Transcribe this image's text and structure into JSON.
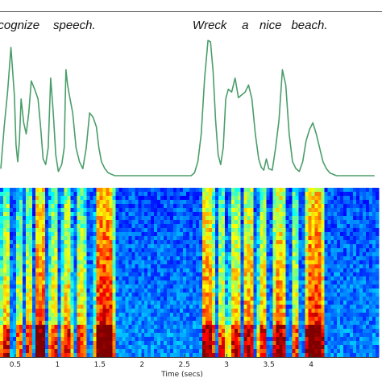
{
  "chart_data": [
    {
      "type": "line",
      "title": "",
      "annotations": [
        {
          "text": "Recognize",
          "x": 0.45
        },
        {
          "text": "speech.",
          "x": 1.2
        },
        {
          "text": "Wreck",
          "x": 2.8
        },
        {
          "text": "a",
          "x": 3.22
        },
        {
          "text": "nice",
          "x": 3.52
        },
        {
          "text": "beach.",
          "x": 3.98
        }
      ],
      "xlim": [
        0.32,
        4.8
      ],
      "ylim": [
        0,
        1
      ],
      "x": [
        0.33,
        0.37,
        0.41,
        0.45,
        0.49,
        0.51,
        0.53,
        0.55,
        0.57,
        0.6,
        0.63,
        0.66,
        0.69,
        0.73,
        0.77,
        0.8,
        0.83,
        0.86,
        0.89,
        0.92,
        0.95,
        0.98,
        1.01,
        1.05,
        1.08,
        1.1,
        1.12,
        1.14,
        1.18,
        1.22,
        1.26,
        1.3,
        1.34,
        1.38,
        1.42,
        1.46,
        1.49,
        1.52,
        1.56,
        1.6,
        1.64,
        1.68,
        1.72,
        1.76,
        1.8,
        1.9,
        2.0,
        2.1,
        2.2,
        2.3,
        2.4,
        2.5,
        2.58,
        2.62,
        2.66,
        2.7,
        2.74,
        2.78,
        2.81,
        2.84,
        2.87,
        2.9,
        2.93,
        2.96,
        2.99,
        3.02,
        3.06,
        3.1,
        3.14,
        3.18,
        3.22,
        3.26,
        3.3,
        3.34,
        3.38,
        3.41,
        3.44,
        3.47,
        3.5,
        3.54,
        3.58,
        3.62,
        3.66,
        3.7,
        3.74,
        3.78,
        3.82,
        3.86,
        3.9,
        3.94,
        3.98,
        4.02,
        4.06,
        4.1,
        4.14,
        4.18,
        4.22,
        4.26,
        4.3,
        4.34,
        4.38,
        4.42,
        4.46,
        4.5,
        4.55,
        4.6,
        4.65,
        4.7,
        4.75
      ],
      "series": [
        {
          "color": "#4a9e6a",
          "values": [
            0.05,
            0.35,
            0.6,
            0.92,
            0.58,
            0.22,
            0.1,
            0.25,
            0.55,
            0.38,
            0.3,
            0.45,
            0.68,
            0.62,
            0.55,
            0.35,
            0.12,
            0.08,
            0.2,
            0.7,
            0.45,
            0.15,
            0.03,
            0.08,
            0.2,
            0.76,
            0.65,
            0.58,
            0.45,
            0.2,
            0.1,
            0.05,
            0.2,
            0.45,
            0.42,
            0.35,
            0.2,
            0.1,
            0.05,
            0.02,
            0.01,
            0.0,
            0.0,
            0.0,
            0.0,
            0.0,
            0.0,
            0.0,
            0.0,
            0.0,
            0.0,
            0.0,
            0.0,
            0.02,
            0.1,
            0.3,
            0.7,
            0.97,
            0.96,
            0.75,
            0.4,
            0.15,
            0.08,
            0.2,
            0.55,
            0.62,
            0.6,
            0.7,
            0.56,
            0.58,
            0.6,
            0.65,
            0.55,
            0.3,
            0.12,
            0.06,
            0.04,
            0.12,
            0.05,
            0.04,
            0.2,
            0.4,
            0.76,
            0.65,
            0.3,
            0.1,
            0.05,
            0.03,
            0.1,
            0.25,
            0.33,
            0.38,
            0.3,
            0.2,
            0.1,
            0.05,
            0.02,
            0.01,
            0.0,
            0.0,
            0.0,
            0.0,
            0.0,
            0.0,
            0.0,
            0.0,
            0.0,
            0.0,
            0.0
          ]
        }
      ]
    },
    {
      "type": "heatmap",
      "xlabel": "Time (secs)",
      "xlim": [
        0.32,
        4.8
      ],
      "x_ticks": [
        0.5,
        1,
        1.5,
        2,
        2.5,
        3,
        3.5,
        4
      ],
      "x_tick_labels": [
        "0.5",
        "1",
        "1.5",
        "2",
        "2.5",
        "3",
        "3.5",
        "4"
      ],
      "colormap": [
        "#00008f",
        "#0000ff",
        "#0080ff",
        "#00ffff",
        "#80ff80",
        "#ffff00",
        "#ff8000",
        "#ff0000",
        "#800000"
      ],
      "speech_segments": [
        {
          "x0": 0.33,
          "x1": 0.45,
          "level": 0.72
        },
        {
          "x0": 0.5,
          "x1": 0.58,
          "level": 0.62
        },
        {
          "x0": 0.62,
          "x1": 0.7,
          "level": 0.68
        },
        {
          "x0": 0.72,
          "x1": 0.86,
          "level": 0.86
        },
        {
          "x0": 0.9,
          "x1": 1.0,
          "level": 0.7
        },
        {
          "x0": 1.05,
          "x1": 1.18,
          "level": 0.74
        },
        {
          "x0": 1.22,
          "x1": 1.34,
          "level": 0.7
        },
        {
          "x0": 1.44,
          "x1": 1.68,
          "level": 0.92
        },
        {
          "x0": 2.7,
          "x1": 2.86,
          "level": 0.82
        },
        {
          "x0": 2.9,
          "x1": 3.0,
          "level": 0.66
        },
        {
          "x0": 3.03,
          "x1": 3.17,
          "level": 0.74
        },
        {
          "x0": 3.2,
          "x1": 3.33,
          "level": 0.78
        },
        {
          "x0": 3.37,
          "x1": 3.48,
          "level": 0.72
        },
        {
          "x0": 3.55,
          "x1": 3.7,
          "level": 0.82
        },
        {
          "x0": 3.76,
          "x1": 3.86,
          "level": 0.66
        },
        {
          "x0": 3.92,
          "x1": 4.16,
          "level": 0.9
        }
      ]
    }
  ]
}
